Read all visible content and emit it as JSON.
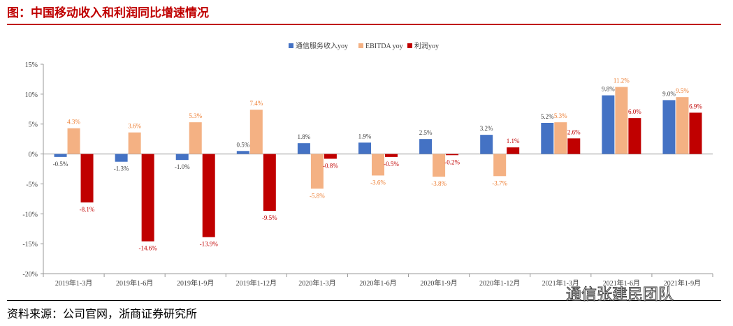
{
  "header": {
    "title": "图：中国移动收入和利润同比增速情况"
  },
  "footer": {
    "source": "资料来源：公司官网，浙商证券研究所",
    "watermark": "通信张建民团队"
  },
  "colors": {
    "revenue": "#4472c4",
    "ebitda": "#f4b183",
    "profit": "#c00000",
    "title": "#c00000"
  },
  "chart_data": {
    "type": "bar",
    "title": "",
    "xlabel": "",
    "ylabel": "",
    "ylim": [
      -20,
      15
    ],
    "yticks": [
      15,
      10,
      5,
      0,
      -5,
      -10,
      -15,
      -20
    ],
    "ytick_labels": [
      "15%",
      "10%",
      "5%",
      "0%",
      "-5%",
      "-10%",
      "-15%",
      "-20%"
    ],
    "legend_position": "top-center",
    "categories": [
      "2019年1-3月",
      "2019年1-6月",
      "2019年1-9月",
      "2019年1-12月",
      "2020年1-3月",
      "2020年1-6月",
      "2020年1-9月",
      "2020年1-12月",
      "2021年1-3月",
      "2021年1-6月",
      "2021年1-9月"
    ],
    "series": [
      {
        "name": "通信服务收入yoy",
        "color": "#4472c4",
        "label_color": "#404040",
        "values": [
          -0.5,
          -1.3,
          -1.0,
          0.5,
          1.8,
          1.9,
          2.5,
          3.2,
          5.2,
          9.8,
          9.0
        ],
        "labels": [
          "-0.5%",
          "-1.3%",
          "-1.0%",
          "0.5%",
          "1.8%",
          "1.9%",
          "2.5%",
          "3.2%",
          "5.2%",
          "9.8%",
          "9.0%"
        ]
      },
      {
        "name": "EBITDA yoy",
        "color": "#f4b183",
        "label_color": "#ed7d31",
        "values": [
          4.3,
          3.6,
          5.3,
          7.4,
          -5.8,
          -3.6,
          -3.8,
          -3.7,
          5.3,
          11.2,
          9.5
        ],
        "labels": [
          "4.3%",
          "3.6%",
          "5.3%",
          "7.4%",
          "-5.8%",
          "-3.6%",
          "-3.8%",
          "-3.7%",
          "5.3%",
          "11.2%",
          "9.5%"
        ]
      },
      {
        "name": "利润yoy",
        "color": "#c00000",
        "label_color": "#c00000",
        "values": [
          -8.1,
          -14.6,
          -13.9,
          -9.5,
          -0.8,
          -0.5,
          -0.2,
          1.1,
          2.6,
          6.0,
          6.9
        ],
        "labels": [
          "-8.1%",
          "-14.6%",
          "-13.9%",
          "-9.5%",
          "-0.8%",
          "-0.5%",
          "-0.2%",
          "1.1%",
          "2.6%",
          "6.0%",
          "6.9%"
        ]
      }
    ]
  }
}
